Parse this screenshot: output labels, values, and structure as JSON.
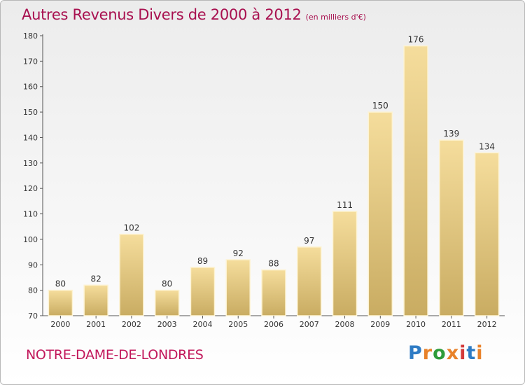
{
  "header": {
    "title": "Autres Revenus Divers de 2000 à 2012",
    "subtitle": "(en milliers d'€)"
  },
  "footer": {
    "town": "NOTRE-DAME-DE-LONDRES",
    "logo": "Proxiti"
  },
  "colors": {
    "bar_top": "#f5dd9c",
    "bar_bottom": "#c9ac62",
    "title": "#a8104f",
    "town": "#c2185b"
  },
  "chart_data": {
    "type": "bar",
    "title": "Autres Revenus Divers de 2000 à 2012",
    "subtitle": "(en milliers d'€)",
    "xlabel": "",
    "ylabel": "",
    "categories": [
      "2000",
      "2001",
      "2002",
      "2003",
      "2004",
      "2005",
      "2006",
      "2007",
      "2008",
      "2009",
      "2010",
      "2011",
      "2012"
    ],
    "values": [
      80,
      82,
      102,
      80,
      89,
      92,
      88,
      97,
      111,
      150,
      176,
      139,
      134
    ],
    "ylim": [
      70,
      180
    ],
    "yticks": [
      70,
      80,
      90,
      100,
      110,
      120,
      130,
      140,
      150,
      160,
      170,
      180
    ],
    "grid": false,
    "legend": "none"
  }
}
